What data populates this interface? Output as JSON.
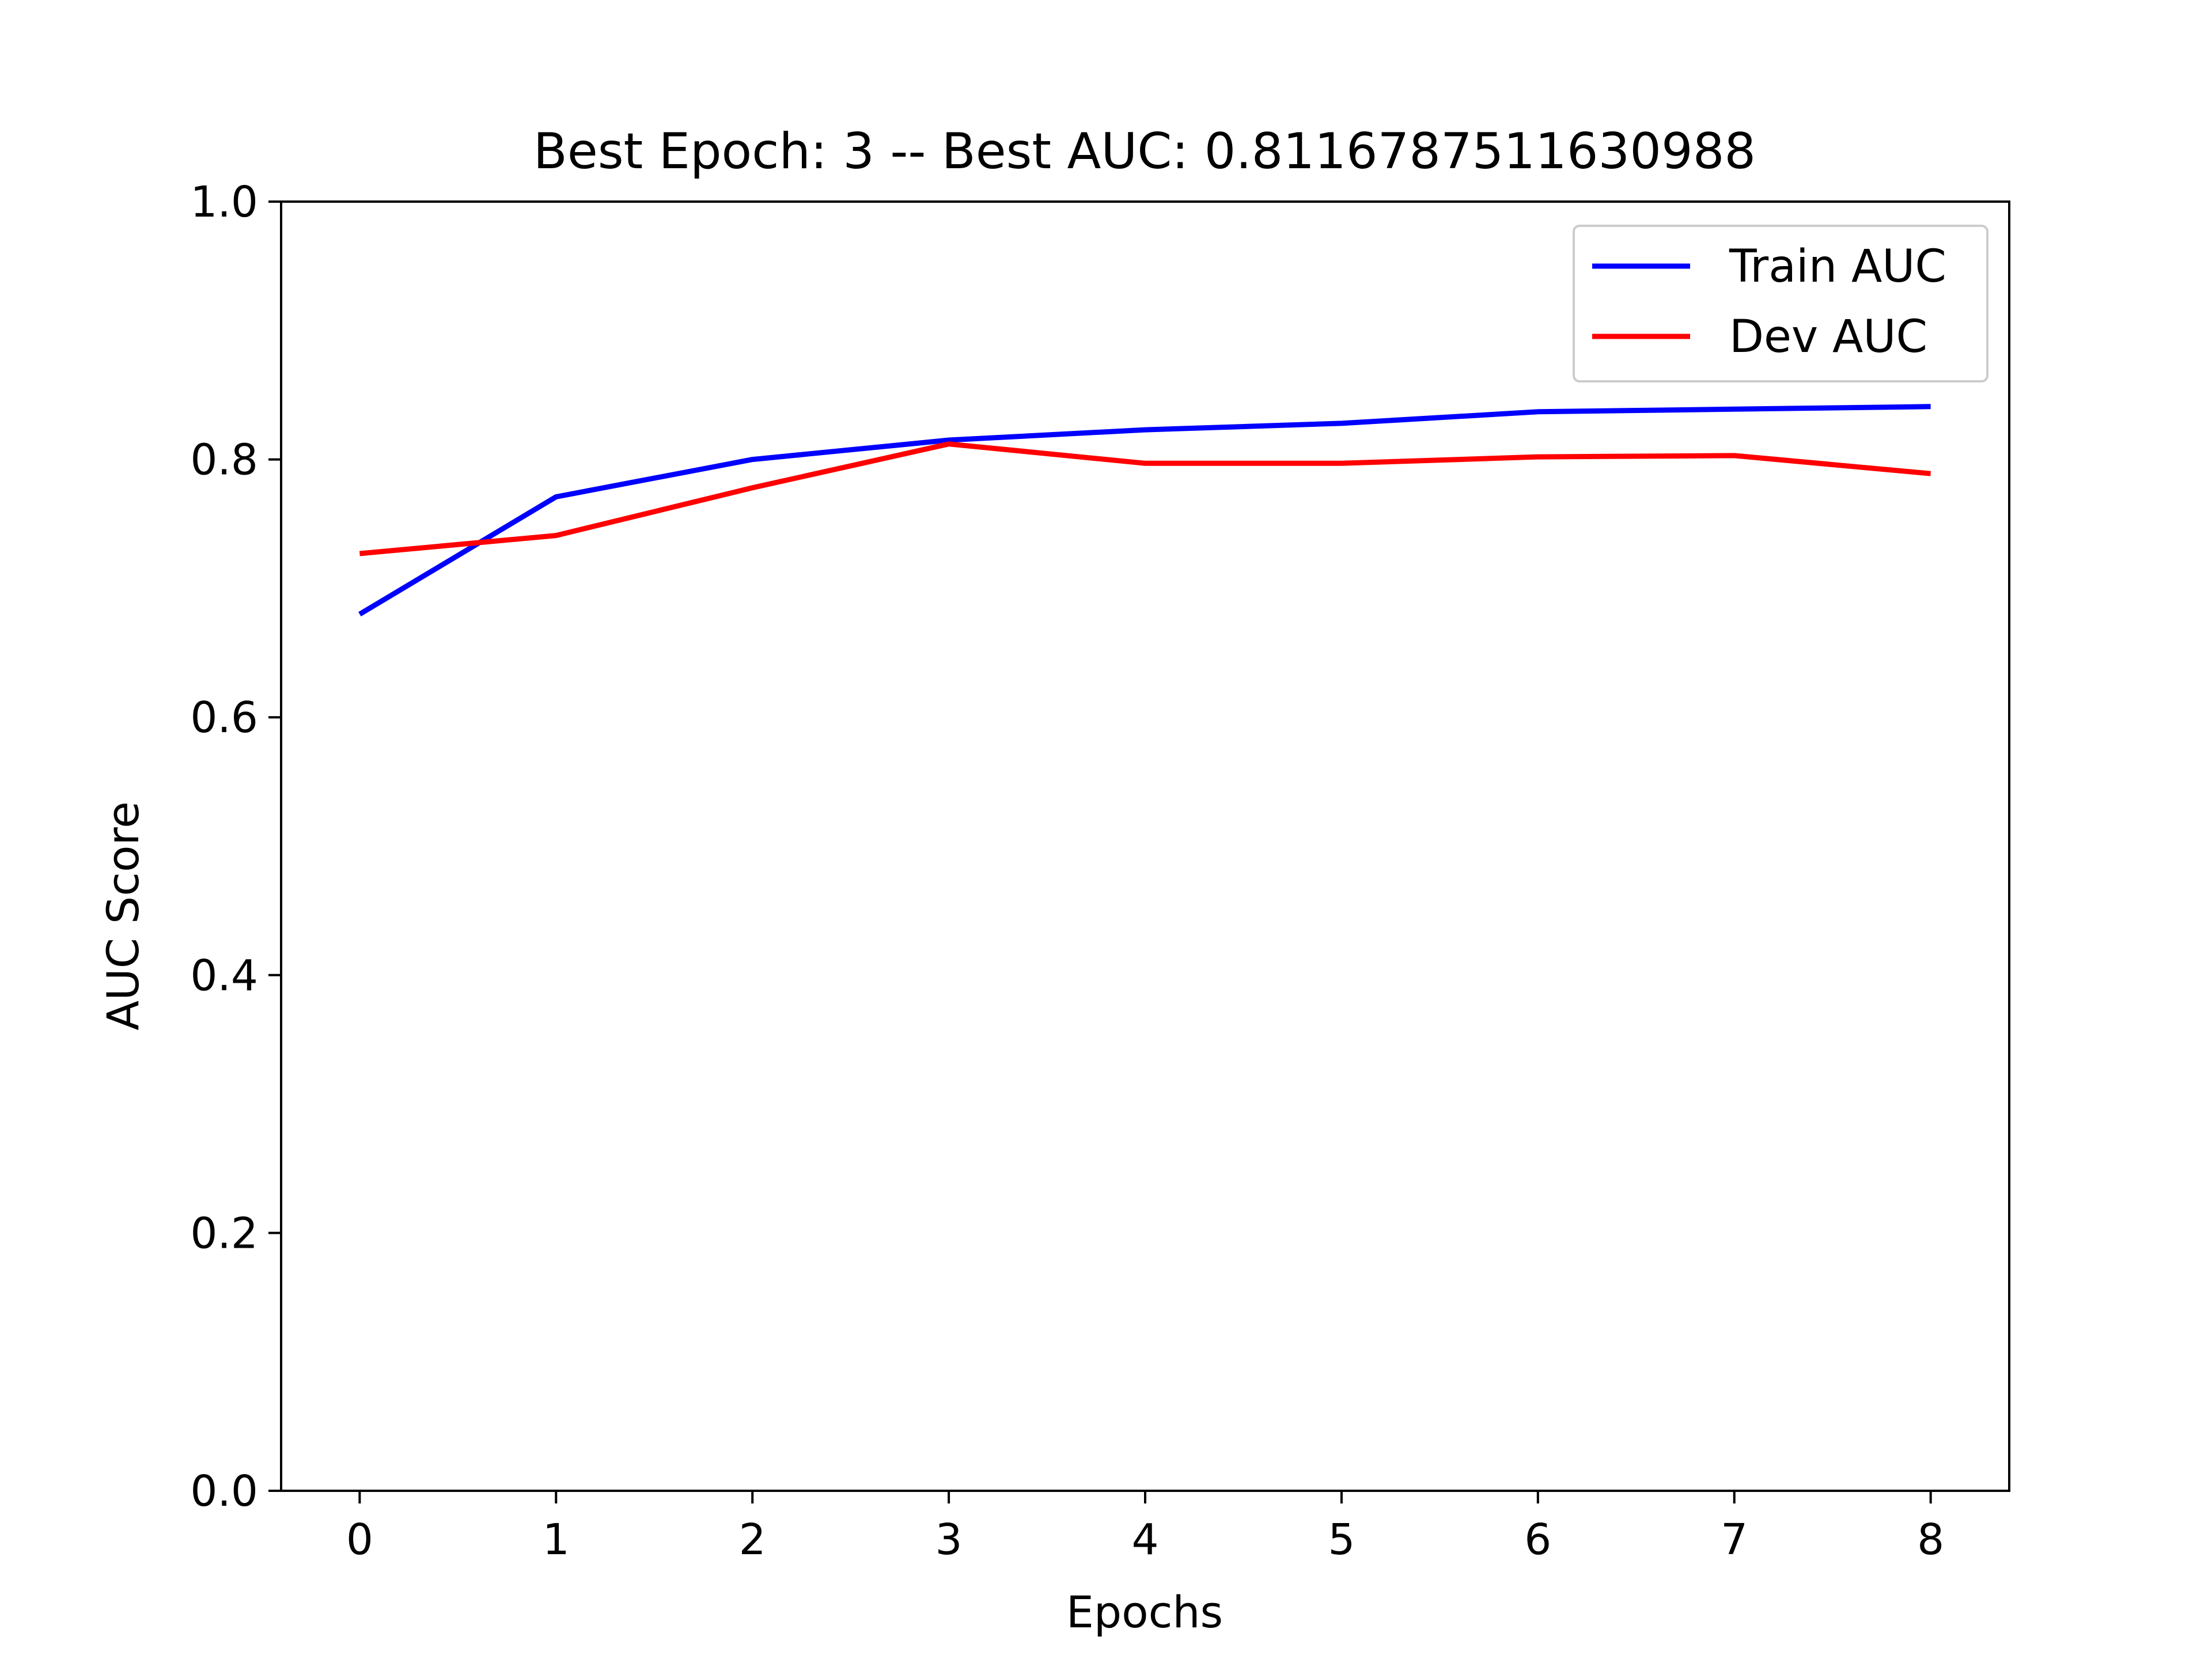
{
  "chart_data": {
    "type": "line",
    "title": "Best Epoch: 3 -- Best AUC: 0.8116787511630988",
    "xlabel": "Epochs",
    "ylabel": "AUC Score",
    "x": [
      0,
      1,
      2,
      3,
      4,
      5,
      6,
      7,
      8
    ],
    "xlim": [
      -0.4,
      8.4
    ],
    "ylim": [
      0.0,
      1.0
    ],
    "x_ticks": [
      "0",
      "1",
      "2",
      "3",
      "4",
      "5",
      "6",
      "7",
      "8"
    ],
    "y_ticks": [
      "0.0",
      "0.2",
      "0.4",
      "0.6",
      "0.8",
      "1.0"
    ],
    "grid": false,
    "legend_position": "top-right",
    "series": [
      {
        "name": "Train AUC",
        "color": "#0000ff",
        "values": [
          0.68,
          0.771,
          0.8,
          0.815,
          0.823,
          0.828,
          0.837,
          0.839,
          0.841
        ]
      },
      {
        "name": "Dev AUC",
        "color": "#ff0000",
        "values": [
          0.727,
          0.741,
          0.778,
          0.812,
          0.797,
          0.797,
          0.802,
          0.803,
          0.789
        ]
      }
    ]
  }
}
